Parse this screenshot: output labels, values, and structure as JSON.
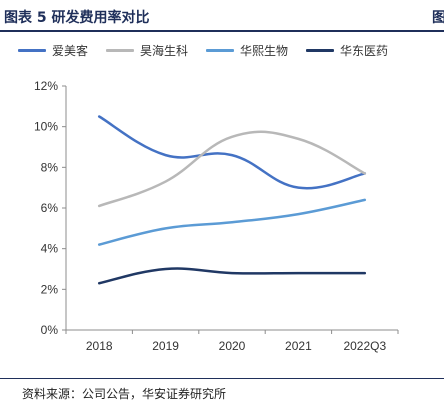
{
  "header": {
    "title": "图表 5  研发费用率对比",
    "right_fragment": "图"
  },
  "footer": {
    "source": "资料来源：公司公告，华安证券研究所"
  },
  "chart_data": {
    "type": "line",
    "title": "研发费用率对比",
    "categories": [
      "2018",
      "2019",
      "2020",
      "2021",
      "2022Q3"
    ],
    "y_ticks": [
      "0%",
      "2%",
      "4%",
      "6%",
      "8%",
      "10%",
      "12%"
    ],
    "ylim": [
      0,
      12
    ],
    "legend_position": "top",
    "grid": false,
    "series": [
      {
        "name": "爱美客",
        "values": [
          10.5,
          8.6,
          8.6,
          7.0,
          7.7
        ],
        "color": "#4472c4"
      },
      {
        "name": "昊海生科",
        "values": [
          6.1,
          7.3,
          9.5,
          9.4,
          7.7
        ],
        "color": "#b8b8b8"
      },
      {
        "name": "华熙生物",
        "values": [
          4.2,
          5.0,
          5.3,
          5.7,
          6.4
        ],
        "color": "#5b9bd5"
      },
      {
        "name": "华东医药",
        "values": [
          2.3,
          3.0,
          2.8,
          2.8,
          2.8
        ],
        "color": "#203864"
      }
    ]
  }
}
